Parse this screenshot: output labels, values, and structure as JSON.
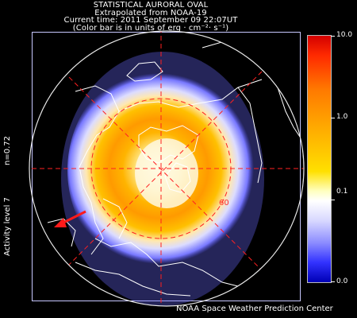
{
  "header": {
    "line1": "STATISTICAL AURORAL OVAL",
    "line2": "Extrapolated from NOAA-19",
    "line3": "Current time: 2011 September 09 22:07UT",
    "line4": "(Color bar is in units of erg · cm⁻²· s⁻¹)"
  },
  "side_labels": {
    "n_value": "n=0.72",
    "activity": "Activity level 7"
  },
  "colorbar": {
    "labels": [
      "10.0",
      "1.0",
      "0.1",
      "0.0"
    ],
    "colors": [
      "#d40000",
      "#ff7a00",
      "#ffe000",
      "#ffffff",
      "#8c8cff",
      "#0000b4"
    ]
  },
  "map": {
    "latitude_label": "60",
    "grid_color": "#ff2020",
    "arrow_color": "#ff1a1a"
  },
  "footer": {
    "credit": "NOAA Space Weather Prediction Center"
  }
}
